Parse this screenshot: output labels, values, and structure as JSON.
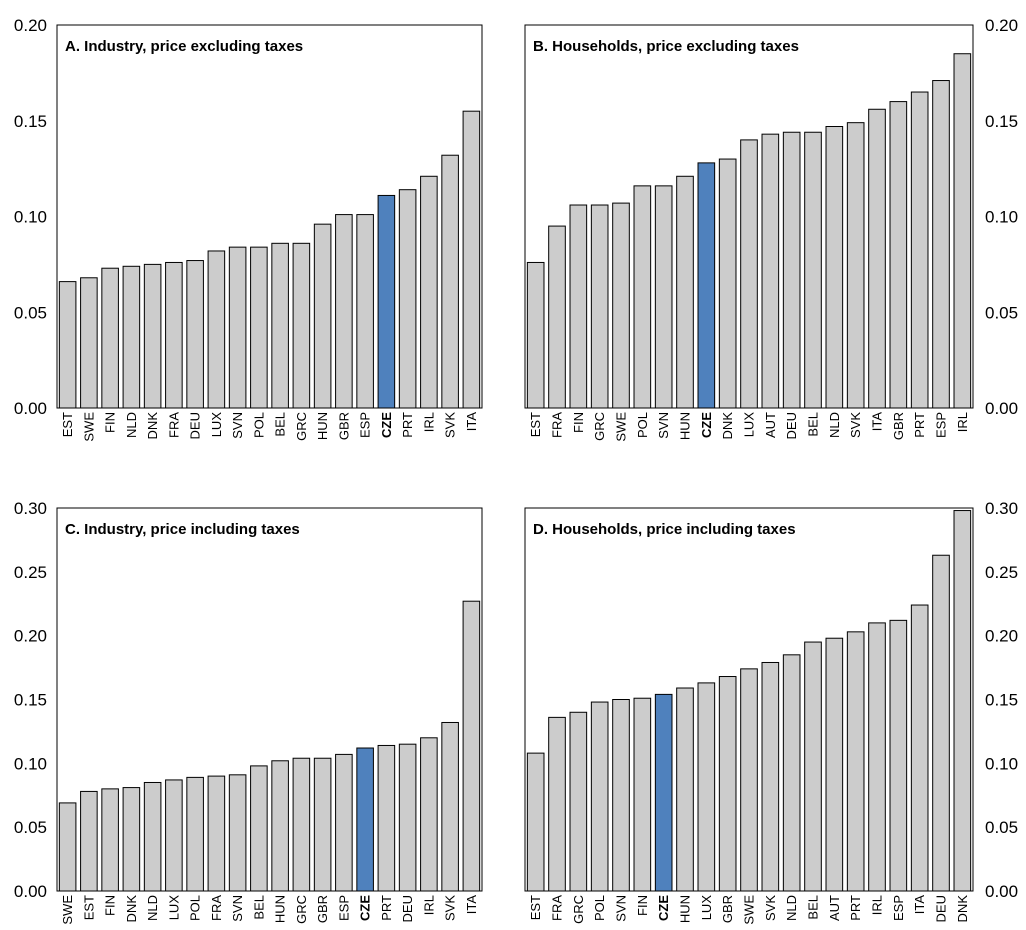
{
  "colors": {
    "bar": "#cccccc",
    "highlight": "#4f81bd",
    "axis": "#000000",
    "background": "#ffffff"
  },
  "chart_data": [
    {
      "type": "bar",
      "title": "A. Industry, price excluding taxes",
      "highlight": "CZE",
      "ylim": [
        0,
        0.2
      ],
      "yticks": [
        "0.00",
        "0.05",
        "0.10",
        "0.15",
        "0.20"
      ],
      "axis_side": "left",
      "grid": false,
      "categories": [
        "EST",
        "SWE",
        "FIN",
        "NLD",
        "DNK",
        "FRA",
        "DEU",
        "LUX",
        "SVN",
        "POL",
        "BEL",
        "GRC",
        "HUN",
        "GBR",
        "ESP",
        "CZE",
        "PRT",
        "IRL",
        "SVK",
        "ITA"
      ],
      "values": [
        0.066,
        0.068,
        0.073,
        0.074,
        0.075,
        0.076,
        0.077,
        0.082,
        0.084,
        0.084,
        0.086,
        0.086,
        0.096,
        0.101,
        0.101,
        0.111,
        0.114,
        0.121,
        0.132,
        0.155
      ]
    },
    {
      "type": "bar",
      "title": "B. Households, price excluding taxes",
      "highlight": "CZE",
      "ylim": [
        0,
        0.2
      ],
      "yticks": [
        "0.00",
        "0.05",
        "0.10",
        "0.15",
        "0.20"
      ],
      "axis_side": "right",
      "grid": false,
      "categories": [
        "EST",
        "FRA",
        "FIN",
        "GRC",
        "SWE",
        "POL",
        "SVN",
        "HUN",
        "CZE",
        "DNK",
        "LUX",
        "AUT",
        "DEU",
        "BEL",
        "NLD",
        "SVK",
        "ITA",
        "GBR",
        "PRT",
        "ESP",
        "IRL"
      ],
      "values": [
        0.076,
        0.095,
        0.106,
        0.106,
        0.107,
        0.116,
        0.116,
        0.121,
        0.128,
        0.13,
        0.14,
        0.143,
        0.144,
        0.144,
        0.147,
        0.149,
        0.156,
        0.16,
        0.165,
        0.171,
        0.185
      ]
    },
    {
      "type": "bar",
      "title": "C. Industry, price including taxes",
      "highlight": "CZE",
      "ylim": [
        0,
        0.3
      ],
      "yticks": [
        "0.00",
        "0.05",
        "0.10",
        "0.15",
        "0.20",
        "0.25",
        "0.30"
      ],
      "axis_side": "left",
      "grid": false,
      "categories": [
        "SWE",
        "EST",
        "FIN",
        "DNK",
        "NLD",
        "LUX",
        "POL",
        "FRA",
        "SVN",
        "BEL",
        "HUN",
        "GRC",
        "GBR",
        "ESP",
        "CZE",
        "PRT",
        "DEU",
        "IRL",
        "SVK",
        "ITA"
      ],
      "values": [
        0.069,
        0.078,
        0.08,
        0.081,
        0.085,
        0.087,
        0.089,
        0.09,
        0.091,
        0.098,
        0.102,
        0.104,
        0.104,
        0.107,
        0.112,
        0.114,
        0.115,
        0.12,
        0.132,
        0.227
      ]
    },
    {
      "type": "bar",
      "title": "D. Households, price including taxes",
      "highlight": "CZE",
      "ylim": [
        0,
        0.3
      ],
      "yticks": [
        "0.00",
        "0.05",
        "0.10",
        "0.15",
        "0.20",
        "0.25",
        "0.30"
      ],
      "axis_side": "right",
      "grid": false,
      "categories": [
        "EST",
        "FRA",
        "GRC",
        "POL",
        "SVN",
        "FIN",
        "CZE",
        "HUN",
        "LUX",
        "GBR",
        "SWE",
        "SVK",
        "NLD",
        "BEL",
        "AUT",
        "PRT",
        "IRL",
        "ESP",
        "ITA",
        "DEU",
        "DNK"
      ],
      "values": [
        0.108,
        0.136,
        0.14,
        0.148,
        0.15,
        0.151,
        0.154,
        0.159,
        0.163,
        0.168,
        0.174,
        0.179,
        0.185,
        0.195,
        0.198,
        0.203,
        0.21,
        0.212,
        0.224,
        0.263,
        0.298
      ]
    }
  ]
}
